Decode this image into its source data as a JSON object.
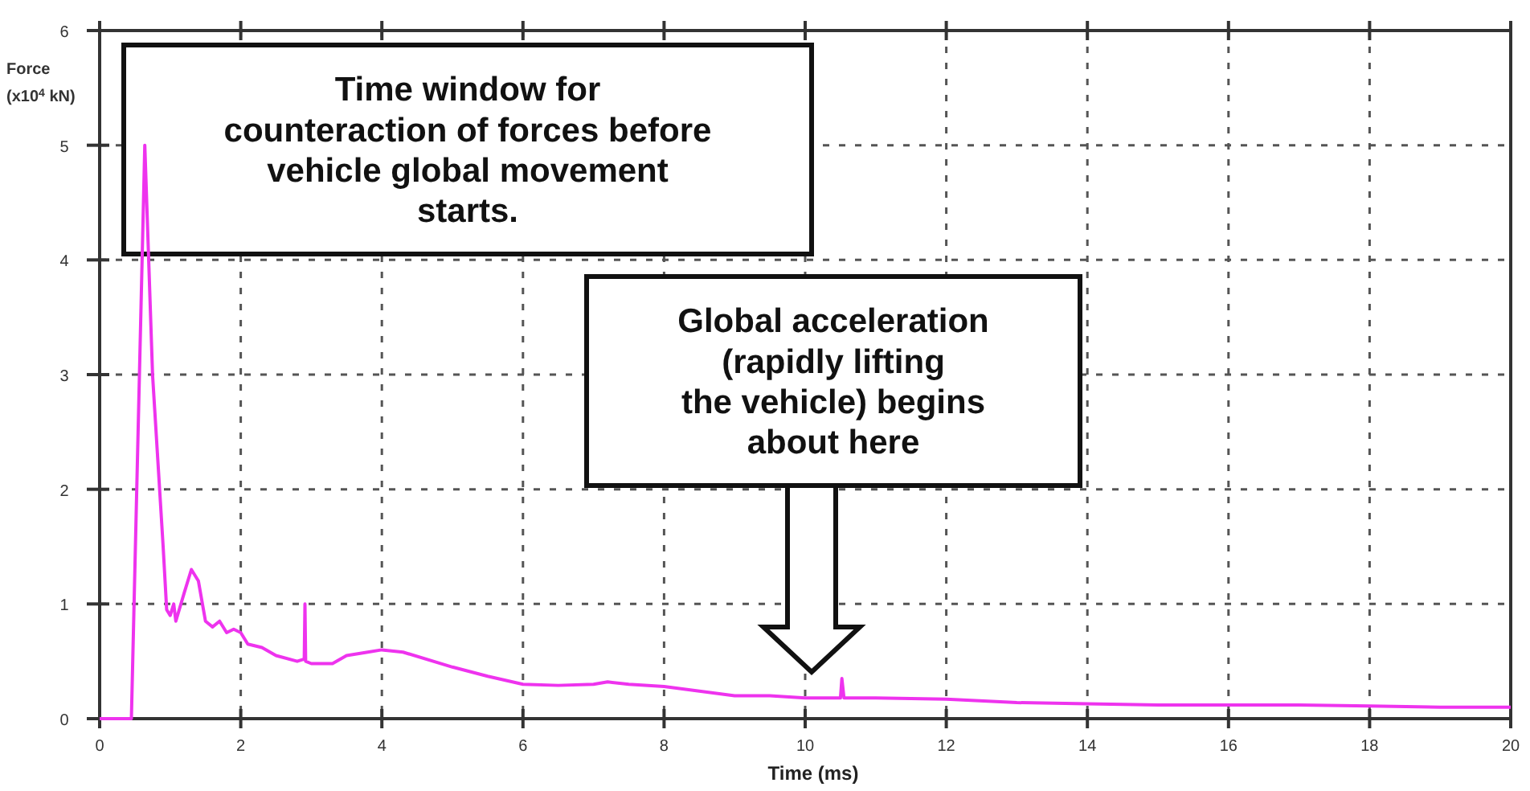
{
  "chart_data": {
    "type": "line",
    "xlabel": "Time  (ms)",
    "ylabel": "Force\n(x10$^{4}$ kN)",
    "xlim": [
      0,
      20
    ],
    "ylim": [
      0,
      6
    ],
    "xticks": [
      0,
      2,
      4,
      6,
      8,
      10,
      12,
      14,
      16,
      18,
      20
    ],
    "yticks": [
      0,
      1,
      2,
      3,
      4,
      5,
      6
    ],
    "grid": true,
    "marker": "none",
    "line_style": "solid",
    "series": [
      {
        "color": "#ee33ee",
        "x": [
          0,
          0.45,
          0.64,
          0.75,
          0.9,
          0.95,
          1.0,
          1.05,
          1.08,
          1.2,
          1.3,
          1.4,
          1.5,
          1.6,
          1.7,
          1.8,
          1.9,
          2.0,
          2.1,
          2.3,
          2.5,
          2.8,
          2.9,
          2.91,
          2.92,
          3.0,
          3.3,
          3.5,
          3.8,
          4.0,
          4.3,
          5,
          5.5,
          6,
          6.5,
          7,
          7.2,
          7.5,
          8,
          8.5,
          9,
          9.5,
          10,
          10.5,
          10.52,
          10.55,
          11,
          12,
          13,
          14,
          15,
          16,
          17,
          18,
          19,
          20
        ],
        "values": [
          0,
          0,
          5.0,
          3.0,
          1.5,
          0.95,
          0.9,
          1.0,
          0.85,
          1.1,
          1.3,
          1.2,
          0.85,
          0.8,
          0.85,
          0.75,
          0.78,
          0.75,
          0.65,
          0.62,
          0.55,
          0.5,
          0.52,
          1.0,
          0.5,
          0.48,
          0.48,
          0.55,
          0.58,
          0.6,
          0.58,
          0.45,
          0.37,
          0.3,
          0.29,
          0.3,
          0.32,
          0.3,
          0.28,
          0.24,
          0.2,
          0.2,
          0.18,
          0.18,
          0.35,
          0.18,
          0.18,
          0.17,
          0.14,
          0.13,
          0.12,
          0.12,
          0.12,
          0.11,
          0.1,
          0.1
        ]
      }
    ],
    "annotations": [
      "Time window for\ncounteraction of forces before\nvehicle global movement\nstarts.",
      "Global acceleration\n(rapidly lifting\nthe vehicle) begins\nabout here"
    ]
  }
}
